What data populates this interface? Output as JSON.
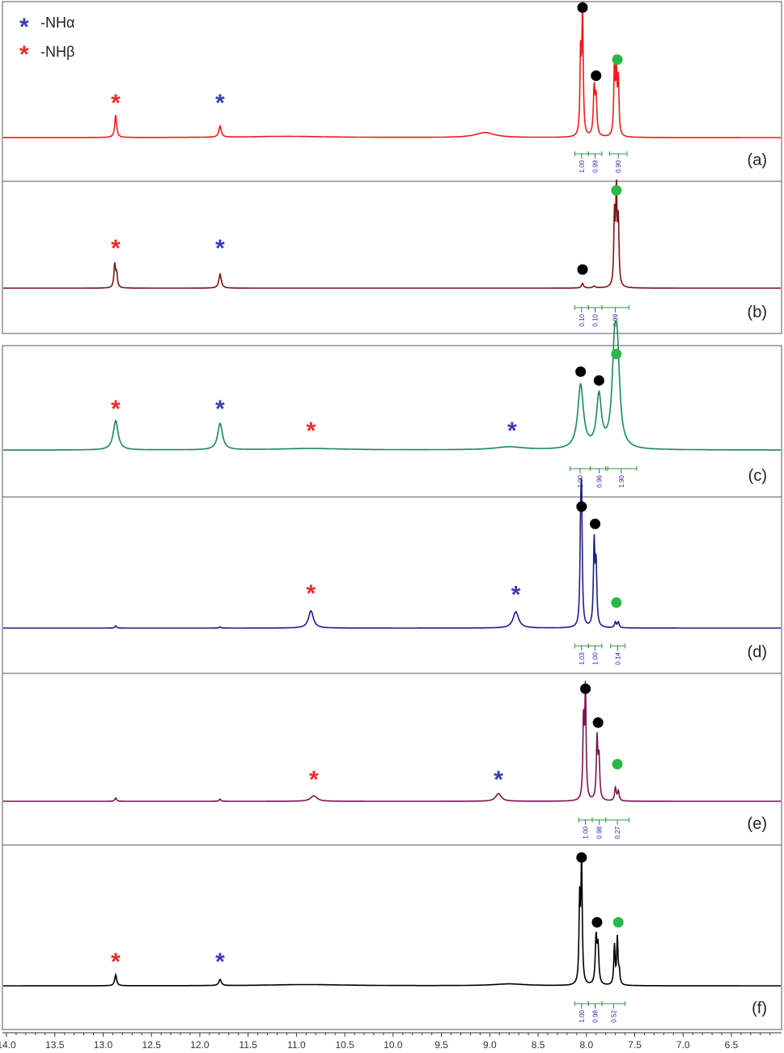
{
  "legend": [
    {
      "symbol": "*",
      "label": "-NHα",
      "color": "#3a3ab8"
    },
    {
      "symbol": "*",
      "label": "-NHβ",
      "color": "#ee2b2b"
    }
  ],
  "colors": {
    "nh_alpha": "#3a3ab8",
    "nh_beta": "#ee2b2b",
    "black_dot": "#000000",
    "green_dot": "#2bb84a",
    "integral_bracket": "#2e9a3a",
    "integral_text": "#2a2aa8"
  },
  "chart_data": {
    "type": "line",
    "xlabel": "",
    "ylabel": "",
    "xlim": [
      14.2,
      6.1
    ],
    "x_ticks": [
      "14.0",
      "13.5",
      "13.0",
      "12.5",
      "12.0",
      "11.5",
      "11.0",
      "10.5",
      "10.0",
      "9.5",
      "9.0",
      "8.5",
      "8.0",
      "7.5",
      "7.0",
      "6.5"
    ],
    "panels": [
      {
        "label": "(a)",
        "color": "#ee1c1c",
        "peaks": [
          {
            "ppm": 12.87,
            "height": 0.18,
            "width": 0.012
          },
          {
            "ppm": 11.79,
            "height": 0.09,
            "width": 0.015
          },
          {
            "ppm": 11.1,
            "height": 0.01,
            "width": 0.5
          },
          {
            "ppm": 9.05,
            "height": 0.04,
            "width": 0.12
          },
          {
            "ppm": 8.06,
            "height": 0.67,
            "width": 0.008
          },
          {
            "ppm": 8.04,
            "height": 1.0,
            "width": 0.008
          },
          {
            "ppm": 7.92,
            "height": 0.38,
            "width": 0.01
          },
          {
            "ppm": 7.9,
            "height": 0.3,
            "width": 0.01
          },
          {
            "ppm": 7.71,
            "height": 0.58,
            "width": 0.008
          },
          {
            "ppm": 7.69,
            "height": 0.48,
            "width": 0.008
          },
          {
            "ppm": 7.67,
            "height": 0.45,
            "width": 0.008
          }
        ],
        "markers": [
          {
            "type": "nh_beta",
            "ppm": 12.87,
            "height": 0.28
          },
          {
            "type": "nh_alpha",
            "ppm": 11.79,
            "height": 0.28
          },
          {
            "type": "black_dot",
            "ppm": 8.04,
            "height": 1.05
          },
          {
            "type": "black_dot",
            "ppm": 7.9,
            "height": 0.5
          },
          {
            "type": "green_dot",
            "ppm": 7.68,
            "height": 0.63
          }
        ],
        "integrals": [
          {
            "from": 8.12,
            "to": 7.98,
            "value": "1.00"
          },
          {
            "from": 7.98,
            "to": 7.84,
            "value": "0.99"
          },
          {
            "from": 7.76,
            "to": 7.58,
            "value": "0.90"
          }
        ]
      },
      {
        "label": "(b)",
        "color": "#7a1414",
        "peaks": [
          {
            "ppm": 12.88,
            "height": 0.25,
            "width": 0.01
          },
          {
            "ppm": 12.86,
            "height": 0.14,
            "width": 0.01
          },
          {
            "ppm": 11.79,
            "height": 0.15,
            "width": 0.015
          },
          {
            "ppm": 8.04,
            "height": 0.05,
            "width": 0.012
          },
          {
            "ppm": 7.92,
            "height": 0.02,
            "width": 0.015
          },
          {
            "ppm": 7.71,
            "height": 0.74,
            "width": 0.008
          },
          {
            "ppm": 7.69,
            "height": 1.0,
            "width": 0.008
          },
          {
            "ppm": 7.67,
            "height": 0.68,
            "width": 0.008
          }
        ],
        "markers": [
          {
            "type": "nh_beta",
            "ppm": 12.87,
            "height": 0.43
          },
          {
            "type": "nh_alpha",
            "ppm": 11.79,
            "height": 0.43
          },
          {
            "type": "black_dot",
            "ppm": 8.04,
            "height": 0.2
          },
          {
            "type": "green_dot",
            "ppm": 7.69,
            "height": 1.05
          }
        ],
        "integrals": [
          {
            "from": 8.12,
            "to": 7.98,
            "value": "0.10"
          },
          {
            "from": 7.98,
            "to": 7.84,
            "value": "0.10"
          },
          {
            "from": 7.84,
            "to": 7.56,
            "value": "0.99"
          }
        ]
      },
      {
        "label": "(c)",
        "color": "#18895a",
        "peaks": [
          {
            "ppm": 12.87,
            "height": 0.3,
            "width": 0.03
          },
          {
            "ppm": 11.79,
            "height": 0.27,
            "width": 0.03
          },
          {
            "ppm": 10.85,
            "height": 0.015,
            "width": 0.4
          },
          {
            "ppm": 8.8,
            "height": 0.03,
            "width": 0.18
          },
          {
            "ppm": 8.06,
            "height": 0.65,
            "width": 0.035
          },
          {
            "ppm": 7.87,
            "height": 0.53,
            "width": 0.03
          },
          {
            "ppm": 7.71,
            "height": 0.82,
            "width": 0.03
          },
          {
            "ppm": 7.68,
            "height": 0.8,
            "width": 0.03
          }
        ],
        "markers": [
          {
            "type": "nh_beta",
            "ppm": 12.87,
            "height": 0.42
          },
          {
            "type": "nh_alpha",
            "ppm": 11.79,
            "height": 0.42
          },
          {
            "type": "nh_beta",
            "ppm": 10.85,
            "height": 0.2
          },
          {
            "type": "nh_alpha",
            "ppm": 8.77,
            "height": 0.2
          },
          {
            "type": "black_dot",
            "ppm": 8.06,
            "height": 0.8
          },
          {
            "type": "black_dot",
            "ppm": 7.87,
            "height": 0.71
          },
          {
            "type": "green_dot",
            "ppm": 7.69,
            "height": 0.98
          }
        ],
        "integrals": [
          {
            "from": 8.17,
            "to": 7.96,
            "value": "1.00"
          },
          {
            "from": 7.96,
            "to": 7.78,
            "value": "0.96"
          },
          {
            "from": 7.8,
            "to": 7.48,
            "value": "1.90"
          }
        ]
      },
      {
        "label": "(d)",
        "color": "#1c1c8c",
        "peaks": [
          {
            "ppm": 12.87,
            "height": 0.02,
            "width": 0.01
          },
          {
            "ppm": 11.79,
            "height": 0.01,
            "width": 0.01
          },
          {
            "ppm": 10.85,
            "height": 0.15,
            "width": 0.03
          },
          {
            "ppm": 8.73,
            "height": 0.14,
            "width": 0.035
          },
          {
            "ppm": 8.06,
            "height": 0.72,
            "width": 0.008
          },
          {
            "ppm": 8.05,
            "height": 1.0,
            "width": 0.008
          },
          {
            "ppm": 7.92,
            "height": 0.72,
            "width": 0.009
          },
          {
            "ppm": 7.9,
            "height": 0.52,
            "width": 0.009
          },
          {
            "ppm": 7.7,
            "height": 0.05,
            "width": 0.01
          },
          {
            "ppm": 7.67,
            "height": 0.05,
            "width": 0.01
          }
        ],
        "markers": [
          {
            "type": "nh_beta",
            "ppm": 10.85,
            "height": 0.3
          },
          {
            "type": "nh_alpha",
            "ppm": 8.73,
            "height": 0.29
          },
          {
            "type": "black_dot",
            "ppm": 8.05,
            "height": 1.05
          },
          {
            "type": "black_dot",
            "ppm": 7.91,
            "height": 0.9
          },
          {
            "type": "green_dot",
            "ppm": 7.69,
            "height": 0.22
          }
        ],
        "integrals": [
          {
            "from": 8.12,
            "to": 7.98,
            "value": "1.03"
          },
          {
            "from": 7.98,
            "to": 7.84,
            "value": "1.00"
          },
          {
            "from": 7.75,
            "to": 7.6,
            "value": "0.14"
          }
        ]
      },
      {
        "label": "(e)",
        "color": "#7a1450",
        "peaks": [
          {
            "ppm": 12.87,
            "height": 0.03,
            "width": 0.01
          },
          {
            "ppm": 11.79,
            "height": 0.02,
            "width": 0.01
          },
          {
            "ppm": 10.82,
            "height": 0.05,
            "width": 0.04
          },
          {
            "ppm": 8.91,
            "height": 0.07,
            "width": 0.035
          },
          {
            "ppm": 8.03,
            "height": 0.73,
            "width": 0.008
          },
          {
            "ppm": 8.01,
            "height": 1.0,
            "width": 0.008
          },
          {
            "ppm": 7.89,
            "height": 0.56,
            "width": 0.009
          },
          {
            "ppm": 7.87,
            "height": 0.38,
            "width": 0.009
          },
          {
            "ppm": 7.7,
            "height": 0.12,
            "width": 0.01
          },
          {
            "ppm": 7.67,
            "height": 0.09,
            "width": 0.01
          }
        ],
        "markers": [
          {
            "type": "nh_beta",
            "ppm": 10.82,
            "height": 0.2
          },
          {
            "type": "nh_alpha",
            "ppm": 8.91,
            "height": 0.2
          },
          {
            "type": "black_dot",
            "ppm": 8.01,
            "height": 1.03
          },
          {
            "type": "black_dot",
            "ppm": 7.88,
            "height": 0.72
          },
          {
            "type": "green_dot",
            "ppm": 7.68,
            "height": 0.34
          }
        ],
        "integrals": [
          {
            "from": 8.08,
            "to": 7.94,
            "value": "1.00"
          },
          {
            "from": 7.94,
            "to": 7.8,
            "value": "0.98"
          },
          {
            "from": 7.8,
            "to": 7.56,
            "value": "0.27"
          }
        ]
      },
      {
        "label": "(f)",
        "color": "#000000",
        "peaks": [
          {
            "ppm": 12.87,
            "height": 0.09,
            "width": 0.012
          },
          {
            "ppm": 11.79,
            "height": 0.05,
            "width": 0.015
          },
          {
            "ppm": 10.9,
            "height": 0.01,
            "width": 0.5
          },
          {
            "ppm": 8.8,
            "height": 0.015,
            "width": 0.2
          },
          {
            "ppm": 8.07,
            "height": 0.67,
            "width": 0.008
          },
          {
            "ppm": 8.05,
            "height": 1.0,
            "width": 0.008
          },
          {
            "ppm": 7.9,
            "height": 0.38,
            "width": 0.01
          },
          {
            "ppm": 7.88,
            "height": 0.3,
            "width": 0.01
          },
          {
            "ppm": 7.71,
            "height": 0.32,
            "width": 0.008
          },
          {
            "ppm": 7.68,
            "height": 0.38,
            "width": 0.008
          },
          {
            "ppm": 7.66,
            "height": 0.1,
            "width": 0.008
          }
        ],
        "markers": [
          {
            "type": "nh_beta",
            "ppm": 12.87,
            "height": 0.2
          },
          {
            "type": "nh_alpha",
            "ppm": 11.79,
            "height": 0.2
          },
          {
            "type": "black_dot",
            "ppm": 8.05,
            "height": 1.05
          },
          {
            "type": "black_dot",
            "ppm": 7.89,
            "height": 0.52
          },
          {
            "type": "green_dot",
            "ppm": 7.67,
            "height": 0.52
          }
        ],
        "integrals": [
          {
            "from": 8.12,
            "to": 7.98,
            "value": "1.00"
          },
          {
            "from": 7.98,
            "to": 7.84,
            "value": "0.98"
          },
          {
            "from": 7.84,
            "to": 7.6,
            "value": "0.52"
          }
        ]
      }
    ]
  }
}
